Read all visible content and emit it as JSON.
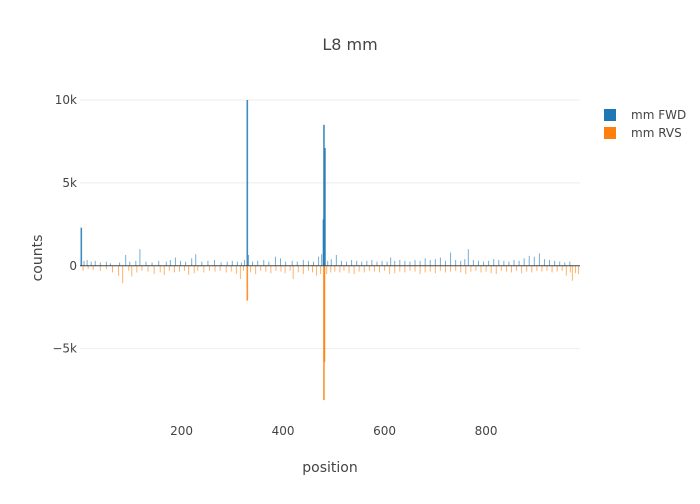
{
  "chart_data": {
    "type": "bar",
    "title": "L8 mm",
    "xlabel": "position",
    "ylabel": "counts",
    "xlim": [
      0,
      985
    ],
    "ylim": [
      -9000,
      10000
    ],
    "x_ticks": [
      {
        "value": 200,
        "label": "200"
      },
      {
        "value": 400,
        "label": "400"
      },
      {
        "value": 600,
        "label": "600"
      },
      {
        "value": 800,
        "label": "800"
      }
    ],
    "y_ticks": [
      {
        "value": 10000,
        "label": "10k"
      },
      {
        "value": 5000,
        "label": "5k"
      },
      {
        "value": 0,
        "label": "0"
      },
      {
        "value": -5000,
        "label": "−5k"
      }
    ],
    "grid": true,
    "legend_position": "top-right",
    "series": [
      {
        "name": "mm FWD",
        "color": "#1f77b4",
        "points": [
          [
            2,
            2300
          ],
          [
            8,
            300
          ],
          [
            14,
            350
          ],
          [
            22,
            250
          ],
          [
            30,
            300
          ],
          [
            40,
            200
          ],
          [
            52,
            250
          ],
          [
            60,
            150
          ],
          [
            78,
            200
          ],
          [
            90,
            650
          ],
          [
            98,
            250
          ],
          [
            110,
            300
          ],
          [
            118,
            1000
          ],
          [
            130,
            250
          ],
          [
            142,
            200
          ],
          [
            155,
            300
          ],
          [
            170,
            250
          ],
          [
            178,
            350
          ],
          [
            188,
            500
          ],
          [
            198,
            300
          ],
          [
            208,
            250
          ],
          [
            220,
            450
          ],
          [
            228,
            700
          ],
          [
            240,
            250
          ],
          [
            252,
            300
          ],
          [
            265,
            350
          ],
          [
            278,
            200
          ],
          [
            290,
            250
          ],
          [
            300,
            300
          ],
          [
            310,
            250
          ],
          [
            318,
            200
          ],
          [
            324,
            350
          ],
          [
            329,
            10000
          ],
          [
            332,
            650
          ],
          [
            340,
            250
          ],
          [
            350,
            300
          ],
          [
            362,
            350
          ],
          [
            372,
            250
          ],
          [
            385,
            550
          ],
          [
            395,
            450
          ],
          [
            405,
            250
          ],
          [
            418,
            300
          ],
          [
            428,
            250
          ],
          [
            440,
            350
          ],
          [
            450,
            300
          ],
          [
            460,
            250
          ],
          [
            470,
            550
          ],
          [
            476,
            700
          ],
          [
            479,
            2800
          ],
          [
            480,
            8500
          ],
          [
            482,
            7100
          ],
          [
            488,
            300
          ],
          [
            495,
            400
          ],
          [
            505,
            650
          ],
          [
            515,
            300
          ],
          [
            525,
            250
          ],
          [
            535,
            350
          ],
          [
            545,
            300
          ],
          [
            555,
            250
          ],
          [
            565,
            300
          ],
          [
            575,
            350
          ],
          [
            585,
            250
          ],
          [
            595,
            300
          ],
          [
            605,
            250
          ],
          [
            612,
            500
          ],
          [
            620,
            300
          ],
          [
            630,
            350
          ],
          [
            640,
            300
          ],
          [
            650,
            250
          ],
          [
            660,
            350
          ],
          [
            670,
            300
          ],
          [
            680,
            450
          ],
          [
            690,
            350
          ],
          [
            700,
            400
          ],
          [
            710,
            500
          ],
          [
            720,
            300
          ],
          [
            730,
            800
          ],
          [
            740,
            350
          ],
          [
            750,
            300
          ],
          [
            758,
            400
          ],
          [
            765,
            1000
          ],
          [
            775,
            350
          ],
          [
            785,
            300
          ],
          [
            795,
            250
          ],
          [
            805,
            300
          ],
          [
            815,
            400
          ],
          [
            825,
            350
          ],
          [
            835,
            300
          ],
          [
            845,
            250
          ],
          [
            855,
            350
          ],
          [
            865,
            300
          ],
          [
            875,
            450
          ],
          [
            885,
            600
          ],
          [
            895,
            550
          ],
          [
            905,
            750
          ],
          [
            915,
            400
          ],
          [
            925,
            350
          ],
          [
            935,
            300
          ],
          [
            945,
            250
          ],
          [
            955,
            200
          ],
          [
            965,
            250
          ]
        ]
      },
      {
        "name": "mm RVS",
        "color": "#ff7f0e",
        "points": [
          [
            6,
            -300
          ],
          [
            16,
            -200
          ],
          [
            26,
            -250
          ],
          [
            40,
            -300
          ],
          [
            52,
            -200
          ],
          [
            64,
            -400
          ],
          [
            76,
            -600
          ],
          [
            84,
            -1050
          ],
          [
            96,
            -300
          ],
          [
            102,
            -650
          ],
          [
            112,
            -400
          ],
          [
            122,
            -300
          ],
          [
            134,
            -350
          ],
          [
            146,
            -500
          ],
          [
            158,
            -400
          ],
          [
            166,
            -550
          ],
          [
            176,
            -300
          ],
          [
            186,
            -400
          ],
          [
            196,
            -350
          ],
          [
            206,
            -300
          ],
          [
            214,
            -550
          ],
          [
            225,
            -450
          ],
          [
            232,
            -300
          ],
          [
            244,
            -400
          ],
          [
            255,
            -300
          ],
          [
            266,
            -350
          ],
          [
            276,
            -300
          ],
          [
            288,
            -400
          ],
          [
            298,
            -350
          ],
          [
            308,
            -500
          ],
          [
            316,
            -800
          ],
          [
            322,
            -300
          ],
          [
            329,
            -2100
          ],
          [
            336,
            -400
          ],
          [
            346,
            -500
          ],
          [
            356,
            -300
          ],
          [
            366,
            -350
          ],
          [
            376,
            -450
          ],
          [
            386,
            -300
          ],
          [
            396,
            -350
          ],
          [
            404,
            -450
          ],
          [
            414,
            -300
          ],
          [
            420,
            -800
          ],
          [
            430,
            -400
          ],
          [
            440,
            -500
          ],
          [
            450,
            -300
          ],
          [
            458,
            -400
          ],
          [
            466,
            -600
          ],
          [
            474,
            -500
          ],
          [
            480,
            -8100
          ],
          [
            481,
            -5800
          ],
          [
            486,
            -500
          ],
          [
            494,
            -400
          ],
          [
            502,
            -350
          ],
          [
            512,
            -400
          ],
          [
            520,
            -300
          ],
          [
            530,
            -450
          ],
          [
            540,
            -500
          ],
          [
            550,
            -350
          ],
          [
            560,
            -400
          ],
          [
            570,
            -300
          ],
          [
            580,
            -350
          ],
          [
            590,
            -400
          ],
          [
            600,
            -300
          ],
          [
            610,
            -500
          ],
          [
            620,
            -450
          ],
          [
            630,
            -350
          ],
          [
            640,
            -400
          ],
          [
            650,
            -300
          ],
          [
            660,
            -350
          ],
          [
            670,
            -500
          ],
          [
            680,
            -400
          ],
          [
            690,
            -350
          ],
          [
            700,
            -450
          ],
          [
            710,
            -300
          ],
          [
            720,
            -400
          ],
          [
            730,
            -350
          ],
          [
            740,
            -300
          ],
          [
            750,
            -400
          ],
          [
            760,
            -500
          ],
          [
            770,
            -350
          ],
          [
            780,
            -300
          ],
          [
            790,
            -400
          ],
          [
            800,
            -350
          ],
          [
            810,
            -450
          ],
          [
            820,
            -500
          ],
          [
            830,
            -300
          ],
          [
            840,
            -350
          ],
          [
            850,
            -400
          ],
          [
            860,
            -300
          ],
          [
            870,
            -450
          ],
          [
            880,
            -350
          ],
          [
            890,
            -400
          ],
          [
            900,
            -300
          ],
          [
            910,
            -350
          ],
          [
            920,
            -300
          ],
          [
            930,
            -400
          ],
          [
            940,
            -350
          ],
          [
            950,
            -300
          ],
          [
            958,
            -600
          ],
          [
            966,
            -400
          ],
          [
            970,
            -900
          ],
          [
            976,
            -450
          ],
          [
            982,
            -500
          ]
        ]
      }
    ]
  }
}
